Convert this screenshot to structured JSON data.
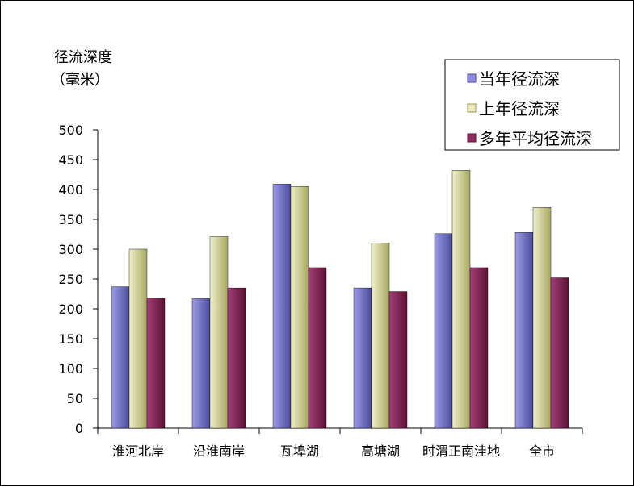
{
  "chart_data": {
    "type": "bar",
    "ylabel": "径流深度",
    "yunit": "（毫米）",
    "ylim": [
      0,
      500
    ],
    "yticks": [
      0,
      50,
      100,
      150,
      200,
      250,
      300,
      350,
      400,
      450,
      500
    ],
    "categories": [
      "淮河北岸",
      "沿淮南岸",
      "瓦埠湖",
      "高塘湖",
      "时渭正南洼地",
      "全市"
    ],
    "series": [
      {
        "name": "当年径流深",
        "values": [
          237,
          217,
          409,
          235,
          326,
          328
        ],
        "colors": [
          "#9b9be6",
          "#4b4b9e"
        ]
      },
      {
        "name": "上年径流深",
        "values": [
          300,
          321,
          405,
          310,
          432,
          370
        ],
        "colors": [
          "#f0f0cf",
          "#a8a85f"
        ]
      },
      {
        "name": "多年平均径流深",
        "values": [
          218,
          235,
          269,
          229,
          269,
          252
        ],
        "colors": [
          "#a23f78",
          "#5f1136"
        ]
      }
    ],
    "legend": "top-right",
    "grid": false
  }
}
